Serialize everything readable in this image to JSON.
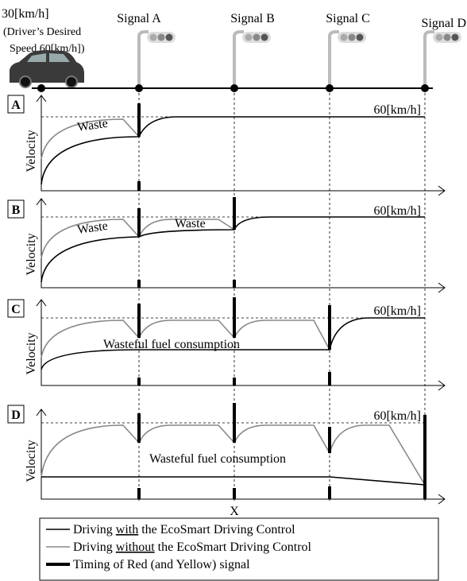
{
  "header": {
    "speed": "30[km/h]",
    "desired_line1": "(Driver’s Desired",
    "desired_line2": "Speed 60[km/h])"
  },
  "signals": [
    "Signal A",
    "Signal B",
    "Signal C",
    "Signal D"
  ],
  "panels": [
    {
      "label": "A",
      "y_label": "Velocity",
      "target": "60[km/h]",
      "annotations": [
        "Waste"
      ]
    },
    {
      "label": "B",
      "y_label": "Velocity",
      "target": "60[km/h]",
      "annotations": [
        "Waste",
        "Waste"
      ]
    },
    {
      "label": "C",
      "y_label": "Velocity",
      "target": "60[km/h]",
      "annotations": [
        "Wasteful fuel consumption"
      ]
    },
    {
      "label": "D",
      "y_label": "Velocity",
      "target": "60[km/h]",
      "annotations": [
        "Wasteful fuel consumption"
      ]
    }
  ],
  "x_label": "X",
  "legend": [
    {
      "parts": [
        "Driving ",
        "with",
        " the EcoSmart Driving Control"
      ]
    },
    {
      "parts": [
        "Driving ",
        "without",
        " the  EcoSmart Driving Control"
      ]
    },
    {
      "parts": [
        "Timing of Red (and Yellow) signal"
      ]
    }
  ]
}
